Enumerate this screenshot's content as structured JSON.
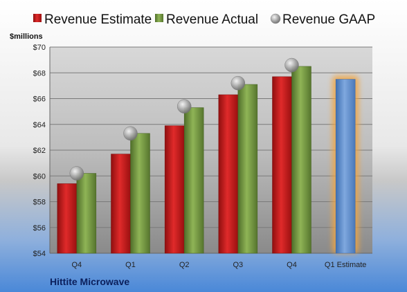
{
  "chart_data": {
    "type": "bar",
    "unit_label": "$millions",
    "company": "Hittite Microwave",
    "categories": [
      "Q4",
      "Q1",
      "Q2",
      "Q3",
      "Q4",
      "Q1 Estimate"
    ],
    "ylim": [
      54,
      70
    ],
    "y_ticks": [
      "$54",
      "$56",
      "$58",
      "$60",
      "$62",
      "$64",
      "$66",
      "$68",
      "$70"
    ],
    "grid": true,
    "legend_position": "top",
    "series": [
      {
        "name": "Revenue Estimate",
        "kind": "bar",
        "color": "#d42020",
        "values": [
          59.4,
          61.7,
          63.9,
          66.3,
          67.7,
          null
        ]
      },
      {
        "name": "Revenue Actual",
        "kind": "bar",
        "color": "#7ea04a",
        "values": [
          60.2,
          63.3,
          65.3,
          67.1,
          68.5,
          null
        ]
      },
      {
        "name": "Revenue GAAP",
        "kind": "marker",
        "color": "#b0b0b0",
        "values": [
          60.2,
          63.3,
          65.4,
          67.2,
          68.6,
          null
        ]
      },
      {
        "name": "",
        "kind": "projection",
        "color": "#6f9ad2",
        "values": [
          null,
          null,
          null,
          null,
          null,
          67.5
        ]
      }
    ]
  }
}
